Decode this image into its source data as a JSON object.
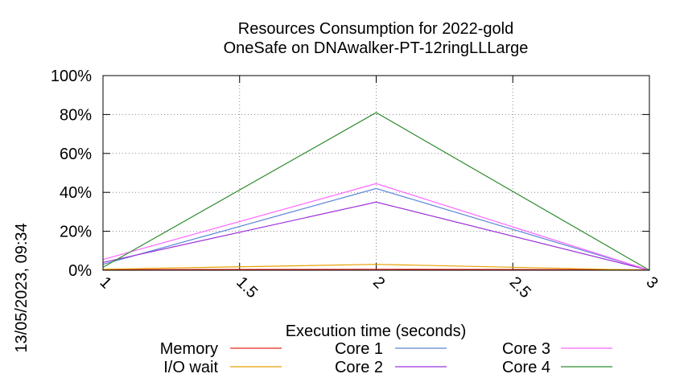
{
  "chart_data": {
    "type": "line",
    "title": "Resources Consumption for 2022-gold",
    "subtitle": "OneSafe on DNAwalker-PT-12ringLLLarge",
    "xlabel": "Execution time (seconds)",
    "ylabel": "",
    "side_label": "13/05/2023, 09:34",
    "x": [
      1,
      2,
      3
    ],
    "xlim": [
      1,
      3
    ],
    "ylim": [
      0,
      100
    ],
    "x_ticks": [
      "1",
      "1.5",
      "2",
      "2.5",
      "3"
    ],
    "y_ticks": [
      "0%",
      "20%",
      "40%",
      "60%",
      "80%",
      "100%"
    ],
    "grid": true,
    "legend_position": "bottom",
    "series": [
      {
        "name": "Memory",
        "color": "#e8291c",
        "values": [
          0.3,
          0.5,
          0.2
        ]
      },
      {
        "name": "I/O wait",
        "color": "#e8a000",
        "values": [
          0.5,
          3,
          0
        ]
      },
      {
        "name": "Core 1",
        "color": "#5b86d6",
        "values": [
          3,
          42,
          0
        ]
      },
      {
        "name": "Core 2",
        "color": "#9b30d9",
        "values": [
          4,
          35,
          0
        ]
      },
      {
        "name": "Core 3",
        "color": "#ff66ff",
        "values": [
          5.5,
          44.5,
          0
        ]
      },
      {
        "name": "Core 4",
        "color": "#2e8b2e",
        "values": [
          1.5,
          81,
          0
        ]
      }
    ]
  }
}
